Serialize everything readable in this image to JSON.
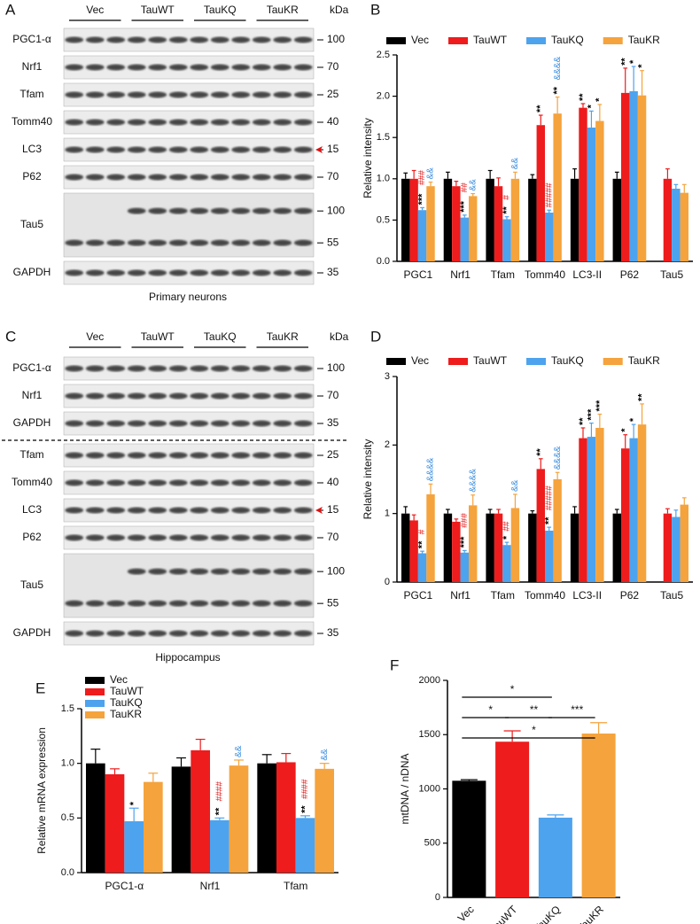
{
  "blots": [
    {
      "panel": "A",
      "groups": [
        "Vec",
        "TauWT",
        "TauKQ",
        "TauKR"
      ],
      "unit": "kDa",
      "caption": "Primary neurons",
      "rows": [
        {
          "label": "PGC1-α",
          "kda": [
            100
          ]
        },
        {
          "label": "Nrf1",
          "kda": [
            70
          ]
        },
        {
          "label": "Tfam",
          "kda": [
            25
          ]
        },
        {
          "label": "Tomm40",
          "kda": [
            40
          ]
        },
        {
          "label": "LC3",
          "kda": [
            15
          ],
          "arrow": true
        },
        {
          "label": "P62",
          "kda": [
            70
          ]
        },
        {
          "label": "Tau5",
          "kda": [
            100,
            55
          ]
        },
        {
          "label": "GAPDH",
          "kda": [
            35
          ]
        }
      ]
    },
    {
      "panel": "C",
      "groups": [
        "Vec",
        "TauWT",
        "TauKQ",
        "TauKR"
      ],
      "unit": "kDa",
      "caption": "Hippocampus",
      "rows": [
        {
          "label": "PGC1-α",
          "kda": [
            100
          ]
        },
        {
          "label": "Nrf1",
          "kda": [
            70
          ]
        },
        {
          "label": "GAPDH",
          "kda": [
            35
          ]
        },
        {
          "label": "Tfam",
          "kda": [
            25
          ]
        },
        {
          "label": "Tomm40",
          "kda": [
            40
          ]
        },
        {
          "label": "LC3",
          "kda": [
            15
          ],
          "arrow": true
        },
        {
          "label": "P62",
          "kda": [
            70
          ]
        },
        {
          "label": "Tau5",
          "kda": [
            100,
            55
          ]
        },
        {
          "label": "GAPDH",
          "kda": [
            35
          ]
        }
      ]
    }
  ],
  "chart_data": [
    {
      "type": "bar",
      "panel": "B",
      "y_label": "Relative intensity",
      "legend": "top",
      "categories": [
        "PGC1",
        "Nrf1",
        "Tfam",
        "Tomm40",
        "LC3-II",
        "P62",
        "Tau5"
      ],
      "ylim": [
        0,
        2.5
      ],
      "yticks": [
        {
          "value": 0,
          "label": "0.0"
        },
        0.5,
        {
          "value": 1,
          "label": "1.0"
        },
        1.5,
        {
          "value": 2,
          "label": "2.0"
        },
        2.5
      ],
      "series": [
        {
          "name": "Vec",
          "color": "#000000",
          "values": [
            1,
            1,
            1,
            1,
            1,
            1,
            null
          ],
          "errors": [
            0.07,
            0.08,
            0.1,
            0.05,
            0.12,
            0.08,
            null
          ]
        },
        {
          "name": "TauWT",
          "color": "#ee1c1c",
          "values": [
            1,
            0.91,
            0.91,
            1.65,
            1.86,
            2.04,
            1.0
          ],
          "errors": [
            0.1,
            0.06,
            0.1,
            0.12,
            0.05,
            0.3,
            0.12
          ],
          "stars": [
            null,
            null,
            null,
            "**",
            "**",
            "**",
            null
          ]
        },
        {
          "name": "TauKQ",
          "color": "#4da3ee",
          "values": [
            0.62,
            0.53,
            0.51,
            0.59,
            1.62,
            2.06,
            0.88
          ],
          "errors": [
            0.03,
            0.03,
            0.03,
            0.03,
            0.2,
            0.3,
            0.05
          ],
          "stars": [
            "***",
            "***",
            "**",
            null,
            "*",
            "*",
            null
          ],
          "hashes": [
            "###",
            "##",
            "#",
            "#####",
            null,
            null,
            null
          ]
        },
        {
          "name": "TauKR",
          "color": "#f5a33c",
          "values": [
            0.91,
            0.79,
            1.0,
            1.79,
            1.7,
            2.01,
            0.83
          ],
          "errors": [
            0.05,
            0.03,
            0.08,
            0.2,
            0.2,
            0.3,
            0.1
          ],
          "stars": [
            null,
            null,
            null,
            "**",
            "*",
            "*",
            null
          ],
          "amps": [
            "&&",
            "&&",
            "&&",
            "&&&&",
            null,
            null,
            null
          ]
        }
      ]
    },
    {
      "type": "bar",
      "panel": "D",
      "y_label": "Relative intensity",
      "legend": "top",
      "categories": [
        "PGC1",
        "Nrf1",
        "Tfam",
        "Tomm40",
        "LC3-II",
        "P62",
        "Tau5"
      ],
      "ylim": [
        0,
        3
      ],
      "yticks": [
        0,
        1,
        2,
        3
      ],
      "series": [
        {
          "name": "Vec",
          "color": "#000000",
          "values": [
            1,
            1,
            1,
            1,
            1,
            1,
            null
          ],
          "errors": [
            0.1,
            0.06,
            0.06,
            0.04,
            0.1,
            0.06,
            null
          ]
        },
        {
          "name": "TauWT",
          "color": "#ee1c1c",
          "values": [
            0.9,
            0.88,
            1.0,
            1.65,
            2.1,
            1.95,
            1.0
          ],
          "errors": [
            0.08,
            0.04,
            0.06,
            0.15,
            0.15,
            0.2,
            0.07
          ],
          "stars": [
            null,
            null,
            null,
            "**",
            "**",
            "*",
            null
          ]
        },
        {
          "name": "TauKQ",
          "color": "#4da3ee",
          "values": [
            0.42,
            0.43,
            0.54,
            0.75,
            2.12,
            2.1,
            0.95
          ],
          "errors": [
            0.03,
            0.03,
            0.04,
            0.05,
            0.2,
            0.2,
            0.1
          ],
          "stars": [
            "**",
            "***",
            "*",
            "**",
            "***",
            "*",
            null
          ],
          "hashes": [
            "#",
            "###",
            "##",
            "#####",
            null,
            null,
            null
          ]
        },
        {
          "name": "TauKR",
          "color": "#f5a33c",
          "values": [
            1.28,
            1.12,
            1.08,
            1.5,
            2.25,
            2.3,
            1.13
          ],
          "errors": [
            0.15,
            0.15,
            0.2,
            0.1,
            0.2,
            0.3,
            0.1
          ],
          "stars": [
            null,
            null,
            null,
            null,
            "***",
            "**",
            null
          ],
          "amps": [
            "&&&&",
            "&&&&",
            "&&",
            "&&&&",
            null,
            null,
            null
          ]
        }
      ]
    },
    {
      "type": "bar",
      "panel": "E",
      "y_label": "Relative  mRNA expression",
      "legend": "top-left",
      "categories": [
        "PGC1-α",
        "Nrf1",
        "Tfam"
      ],
      "ylim": [
        0,
        1.5
      ],
      "yticks": [
        {
          "value": 0,
          "label": "0.0"
        },
        0.5,
        {
          "value": 1,
          "label": "1.0"
        },
        1.5
      ],
      "series": [
        {
          "name": "Vec",
          "color": "#000000",
          "values": [
            1.0,
            0.97,
            1.0
          ],
          "errors": [
            0.13,
            0.08,
            0.08
          ]
        },
        {
          "name": "TauWT",
          "color": "#ee1c1c",
          "values": [
            0.9,
            1.12,
            1.01
          ],
          "errors": [
            0.05,
            0.1,
            0.08
          ]
        },
        {
          "name": "TauKQ",
          "color": "#4da3ee",
          "values": [
            0.47,
            0.48,
            0.5
          ],
          "errors": [
            0.12,
            0.02,
            0.02
          ],
          "stars": [
            "*",
            "**",
            "**"
          ],
          "hashes": [
            null,
            "####",
            "####"
          ]
        },
        {
          "name": "TauKR",
          "color": "#f5a33c",
          "values": [
            0.83,
            0.98,
            0.95
          ],
          "errors": [
            0.08,
            0.05,
            0.05
          ],
          "amps": [
            null,
            "&&",
            "&&"
          ]
        }
      ]
    },
    {
      "type": "bar",
      "panel": "F",
      "y_label": "mtDNA / nDNA",
      "categories": [
        "Vec",
        "TauWT",
        "TauKQ",
        "TauKR"
      ],
      "colors": [
        "#000000",
        "#ee1c1c",
        "#4da3ee",
        "#f5a33c"
      ],
      "values": [
        1075,
        1435,
        735,
        1510
      ],
      "errors": [
        10,
        100,
        25,
        100
      ],
      "ylim": [
        0,
        2000
      ],
      "yticks": [
        0,
        500,
        1000,
        1500,
        2000
      ],
      "comparisons": [
        {
          "pair": [
            0,
            2
          ],
          "label": "*"
        },
        {
          "pair": [
            0,
            1
          ],
          "label": "*"
        },
        {
          "pair": [
            1,
            2
          ],
          "label": "**"
        },
        {
          "pair": [
            2,
            3
          ],
          "label": "***"
        },
        {
          "pair": [
            0,
            3
          ],
          "label": "*"
        }
      ]
    }
  ]
}
